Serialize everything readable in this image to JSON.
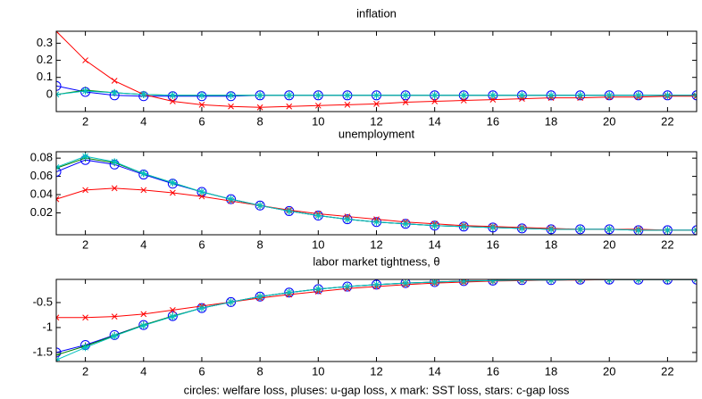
{
  "chart_data": [
    {
      "type": "line",
      "title": "inflation",
      "x": [
        1,
        2,
        3,
        4,
        5,
        6,
        7,
        8,
        9,
        10,
        11,
        12,
        13,
        14,
        15,
        16,
        17,
        18,
        19,
        20,
        21,
        22,
        23
      ],
      "xlim": [
        1,
        23
      ],
      "xticks": [
        2,
        4,
        6,
        8,
        10,
        12,
        14,
        16,
        18,
        20,
        22
      ],
      "ylim": [
        -0.1,
        0.37
      ],
      "yticks": [
        0,
        0.1,
        0.2,
        0.3
      ],
      "series": [
        {
          "color": "#0000ff",
          "marker": "circle",
          "values": [
            0.05,
            0.015,
            -0.005,
            -0.01,
            -0.01,
            -0.01,
            -0.01,
            -0.005,
            -0.005,
            -0.005,
            -0.005,
            -0.005,
            -0.005,
            -0.005,
            -0.005,
            -0.005,
            -0.005,
            -0.005,
            -0.005,
            -0.005,
            -0.005,
            -0.005,
            -0.005
          ]
        },
        {
          "color": "#008000",
          "marker": "plus",
          "values": [
            0.0,
            0.025,
            0.01,
            0.0,
            -0.005,
            -0.005,
            -0.005,
            -0.005,
            -0.005,
            -0.005,
            -0.005,
            -0.005,
            -0.005,
            -0.005,
            -0.005,
            -0.005,
            -0.005,
            -0.005,
            -0.005,
            -0.005,
            -0.005,
            -0.005,
            -0.005
          ]
        },
        {
          "color": "#ff0000",
          "marker": "x",
          "values": [
            0.37,
            0.2,
            0.08,
            0.0,
            -0.04,
            -0.06,
            -0.07,
            -0.075,
            -0.07,
            -0.065,
            -0.06,
            -0.055,
            -0.045,
            -0.04,
            -0.035,
            -0.03,
            -0.025,
            -0.02,
            -0.02,
            -0.015,
            -0.015,
            -0.01,
            -0.01
          ]
        },
        {
          "color": "#00bfbf",
          "marker": "star",
          "values": [
            0.0,
            0.02,
            0.01,
            0.0,
            -0.005,
            -0.005,
            -0.005,
            -0.005,
            -0.005,
            -0.005,
            -0.005,
            -0.005,
            -0.005,
            -0.005,
            -0.005,
            -0.005,
            -0.005,
            -0.005,
            -0.005,
            -0.005,
            -0.005,
            -0.005,
            -0.005
          ]
        }
      ]
    },
    {
      "type": "line",
      "title": "unemployment",
      "x": [
        1,
        2,
        3,
        4,
        5,
        6,
        7,
        8,
        9,
        10,
        11,
        12,
        13,
        14,
        15,
        16,
        17,
        18,
        19,
        20,
        21,
        22,
        23
      ],
      "xlim": [
        1,
        23
      ],
      "xticks": [
        2,
        4,
        6,
        8,
        10,
        12,
        14,
        16,
        18,
        20,
        22
      ],
      "ylim": [
        -0.004,
        0.087
      ],
      "yticks": [
        0.02,
        0.04,
        0.06,
        0.08
      ],
      "series": [
        {
          "color": "#0000ff",
          "marker": "circle",
          "values": [
            0.065,
            0.078,
            0.073,
            0.062,
            0.052,
            0.043,
            0.035,
            0.028,
            0.022,
            0.017,
            0.013,
            0.01,
            0.008,
            0.006,
            0.005,
            0.004,
            0.003,
            0.002,
            0.002,
            0.002,
            0.001,
            0.001,
            0.001
          ]
        },
        {
          "color": "#008000",
          "marker": "plus",
          "values": [
            0.069,
            0.08,
            0.075,
            0.063,
            0.053,
            0.043,
            0.035,
            0.028,
            0.022,
            0.017,
            0.013,
            0.01,
            0.008,
            0.006,
            0.005,
            0.004,
            0.003,
            0.002,
            0.002,
            0.002,
            0.001,
            0.001,
            0.001
          ]
        },
        {
          "color": "#ff0000",
          "marker": "x",
          "values": [
            0.035,
            0.045,
            0.047,
            0.045,
            0.042,
            0.038,
            0.033,
            0.028,
            0.023,
            0.019,
            0.016,
            0.013,
            0.01,
            0.008,
            0.006,
            0.005,
            0.004,
            0.003,
            0.002,
            0.002,
            0.002,
            0.001,
            0.001
          ]
        },
        {
          "color": "#00bfbf",
          "marker": "star",
          "values": [
            0.07,
            0.082,
            0.076,
            0.063,
            0.053,
            0.043,
            0.035,
            0.028,
            0.022,
            0.017,
            0.013,
            0.01,
            0.008,
            0.006,
            0.005,
            0.004,
            0.003,
            0.002,
            0.002,
            0.002,
            0.001,
            0.001,
            0.001
          ]
        }
      ]
    },
    {
      "type": "line",
      "title": "labor market tightness, θ",
      "xlabel": "circles: welfare loss, pluses: u-gap loss, x mark: SST loss, stars: c-gap loss",
      "x": [
        1,
        2,
        3,
        4,
        5,
        6,
        7,
        8,
        9,
        10,
        11,
        12,
        13,
        14,
        15,
        16,
        17,
        18,
        19,
        20,
        21,
        22,
        23
      ],
      "xlim": [
        1,
        23
      ],
      "xticks": [
        2,
        4,
        6,
        8,
        10,
        12,
        14,
        16,
        18,
        20,
        22
      ],
      "ylim": [
        -1.68,
        -0.036
      ],
      "yticks": [
        -1.5,
        -1,
        -0.5
      ],
      "series": [
        {
          "color": "#0000ff",
          "marker": "circle",
          "values": [
            -1.5,
            -1.35,
            -1.15,
            -0.95,
            -0.77,
            -0.61,
            -0.49,
            -0.38,
            -0.3,
            -0.23,
            -0.18,
            -0.14,
            -0.11,
            -0.09,
            -0.07,
            -0.06,
            -0.05,
            -0.05,
            -0.04,
            -0.04,
            -0.04,
            -0.04,
            -0.04
          ]
        },
        {
          "color": "#008000",
          "marker": "plus",
          "values": [
            -1.55,
            -1.37,
            -1.16,
            -0.95,
            -0.77,
            -0.61,
            -0.49,
            -0.38,
            -0.3,
            -0.23,
            -0.18,
            -0.14,
            -0.11,
            -0.09,
            -0.07,
            -0.06,
            -0.05,
            -0.05,
            -0.04,
            -0.04,
            -0.04,
            -0.04,
            -0.04
          ]
        },
        {
          "color": "#ff0000",
          "marker": "x",
          "values": [
            -0.8,
            -0.8,
            -0.78,
            -0.73,
            -0.65,
            -0.57,
            -0.49,
            -0.41,
            -0.34,
            -0.28,
            -0.22,
            -0.18,
            -0.14,
            -0.11,
            -0.09,
            -0.07,
            -0.06,
            -0.05,
            -0.05,
            -0.04,
            -0.04,
            -0.04,
            -0.04
          ]
        },
        {
          "color": "#00bfbf",
          "marker": "star",
          "values": [
            -1.65,
            -1.4,
            -1.17,
            -0.96,
            -0.78,
            -0.61,
            -0.49,
            -0.38,
            -0.3,
            -0.23,
            -0.18,
            -0.14,
            -0.11,
            -0.09,
            -0.07,
            -0.06,
            -0.05,
            -0.05,
            -0.04,
            -0.04,
            -0.04,
            -0.04,
            -0.04
          ]
        }
      ]
    }
  ]
}
